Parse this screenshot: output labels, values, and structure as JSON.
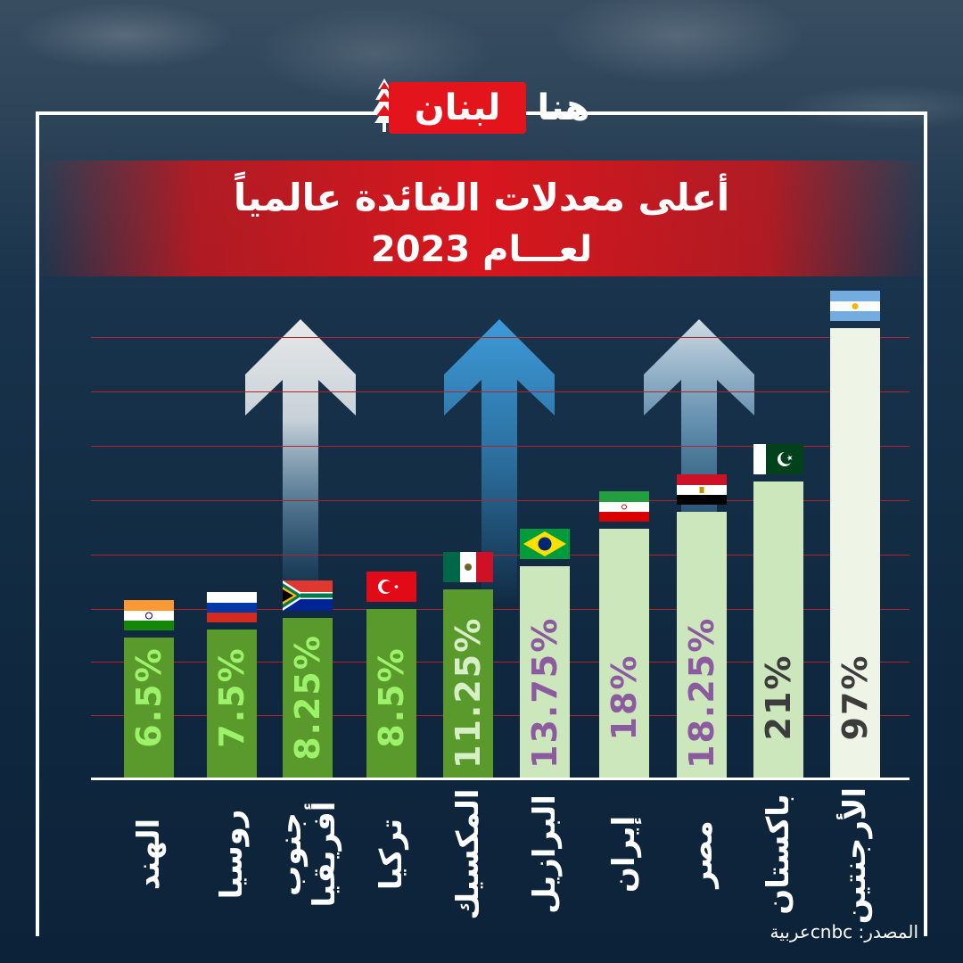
{
  "brand": {
    "logo_text_a": "لبنان",
    "logo_text_b": "هنا"
  },
  "title_line1": "أعلى معدلات الفائدة عالمياً",
  "title_line2": "لعـــام 2023",
  "source": "المصدر: cnbcعربية",
  "colors": {
    "background": "#17324a",
    "banner": "#d8161d",
    "gridline": "#b5202a",
    "bar_green": "#5a9a2c",
    "bar_light": "#cde7bd",
    "bar_pale": "#eef5e6",
    "label_green": "#9cf36a",
    "label_purple": "#8c5a9e",
    "label_dark": "#3c3c3c"
  },
  "chart_data": {
    "type": "bar",
    "title": "أعلى معدلات الفائدة عالمياً لعـــام 2023",
    "xlabel": "",
    "ylabel": "",
    "grid": true,
    "categories": [
      "الهند",
      "روسيا",
      "جنوب أفريقيا",
      "تركيا",
      "المكسيك",
      "البرازيل",
      "إيران",
      "مصر",
      "باكستان",
      "الأرجنتين"
    ],
    "values": [
      6.5,
      7.5,
      8.25,
      8.5,
      11.25,
      13.75,
      18,
      18.25,
      21,
      97
    ],
    "value_labels": [
      "6.5%",
      "7.5%",
      "8.25%",
      "8.5%",
      "11.25%",
      "13.75%",
      "18%",
      "18.25%",
      "21%",
      "97%"
    ],
    "flags": [
      "india-flag",
      "russia-flag",
      "south-africa-flag",
      "turkey-flag",
      "mexico-flag",
      "brazil-flag",
      "iran-flag",
      "egypt-flag",
      "pakistan-flag",
      "argentina-flag"
    ],
    "country_lines": [
      [
        "الهند"
      ],
      [
        "روسيا"
      ],
      [
        "جنوب",
        "أفريقيا"
      ],
      [
        "تركيا"
      ],
      [
        "المكسيك"
      ],
      [
        "البرازيل"
      ],
      [
        "إيران"
      ],
      [
        "مصر"
      ],
      [
        "باكستان"
      ],
      [
        "الأرجنتين"
      ]
    ]
  }
}
